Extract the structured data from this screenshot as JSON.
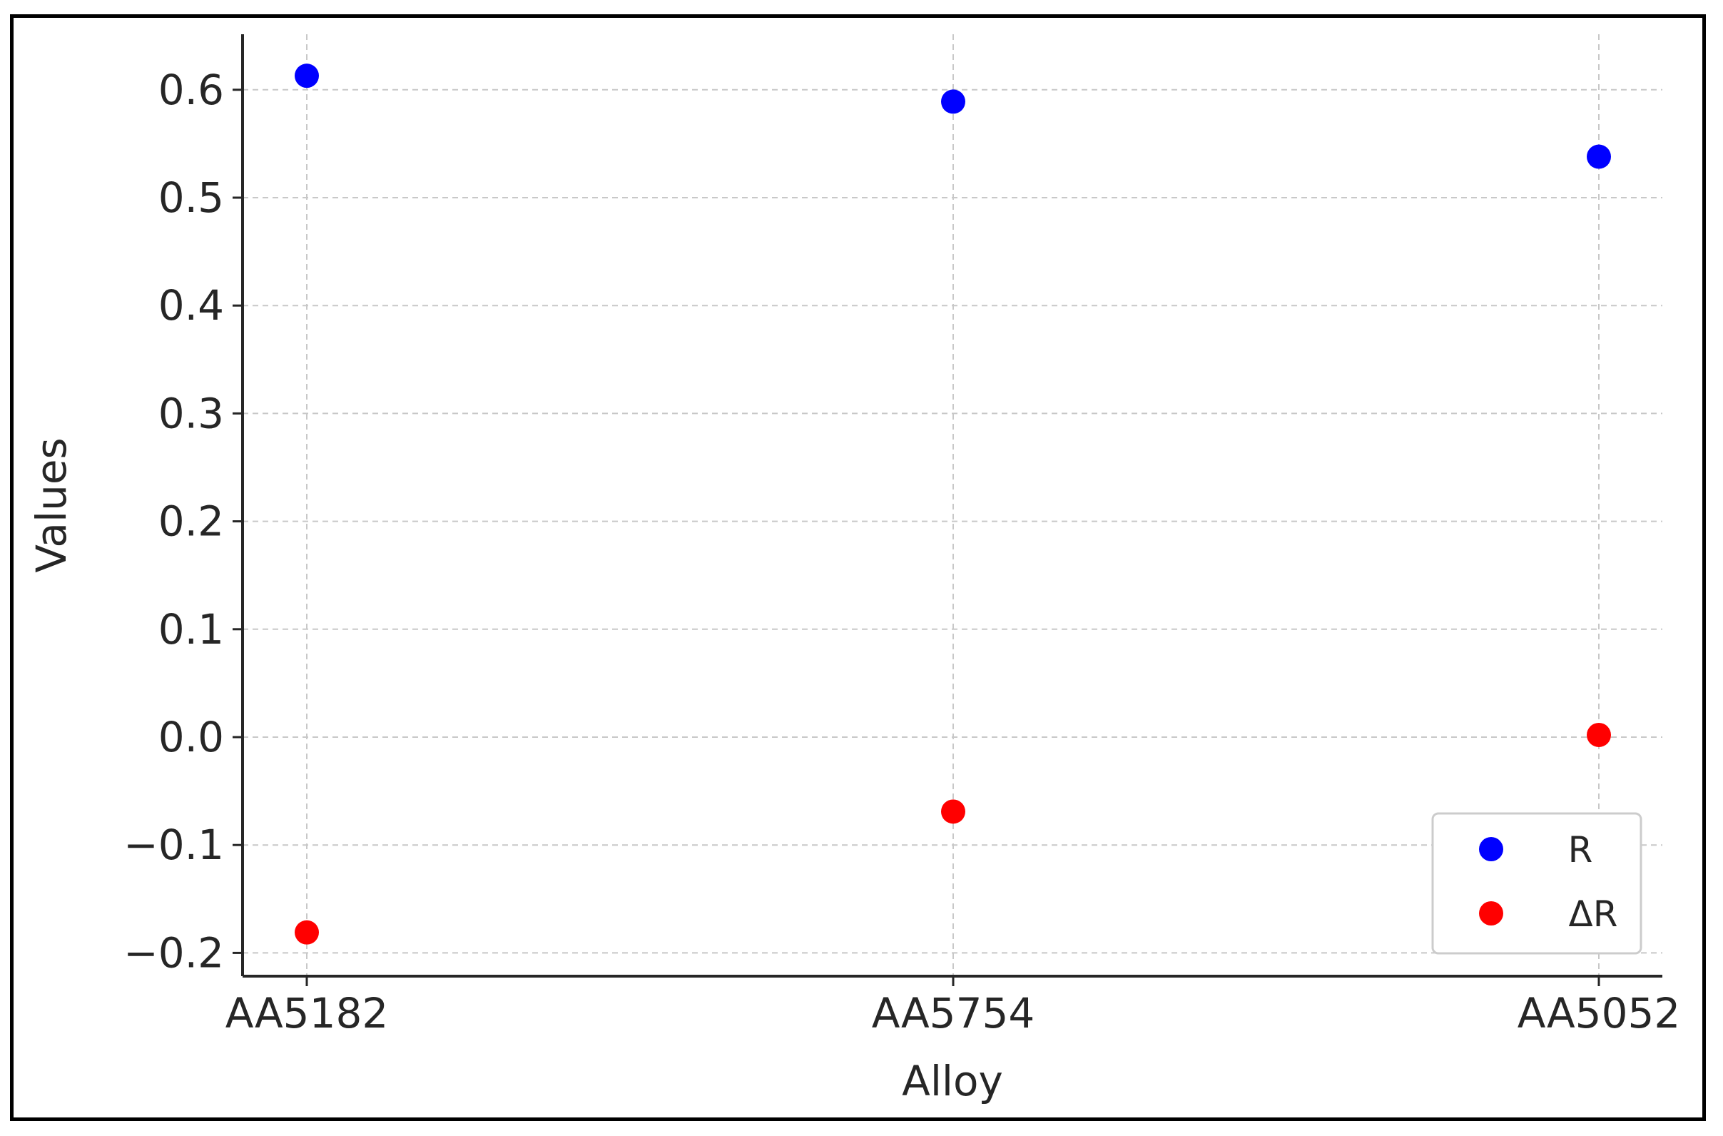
{
  "chart_data": {
    "type": "scatter",
    "categories": [
      "AA5182",
      "AA5754",
      "AA5052"
    ],
    "series": [
      {
        "name": "R",
        "color": "#0000ff",
        "values": [
          0.613,
          0.589,
          0.538
        ]
      },
      {
        "name": "ΔR",
        "color": "#ff0000",
        "values": [
          -0.181,
          -0.069,
          0.002
        ]
      }
    ],
    "xlabel": "Alloy",
    "ylabel": "Values",
    "ylim": [
      -0.22,
      0.65
    ],
    "yticks": [
      -0.2,
      -0.1,
      0.0,
      0.1,
      0.2,
      0.3,
      0.4,
      0.5,
      0.6
    ],
    "ytick_labels": [
      "−0.2",
      "−0.1",
      "0.0",
      "0.1",
      "0.2",
      "0.3",
      "0.4",
      "0.5",
      "0.6"
    ],
    "grid": true,
    "legend_position": "bottom-right"
  }
}
